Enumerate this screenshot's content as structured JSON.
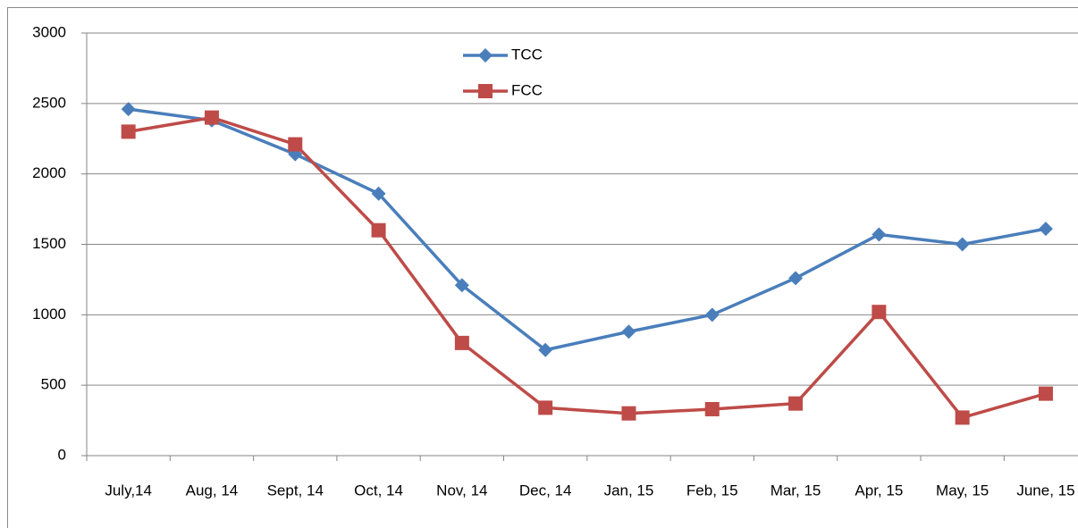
{
  "chart_data": {
    "type": "line",
    "categories": [
      "July,14",
      "Aug, 14",
      "Sept, 14",
      "Oct, 14",
      "Nov, 14",
      "Dec, 14",
      "Jan, 15",
      "Feb, 15",
      "Mar, 15",
      "Apr, 15",
      "May, 15",
      "June, 15"
    ],
    "series": [
      {
        "name": "TCC",
        "color": "#4a7ebb",
        "marker": "diamond",
        "values": [
          2460,
          2380,
          2140,
          1860,
          1210,
          750,
          880,
          1000,
          1260,
          1570,
          1500,
          1610
        ]
      },
      {
        "name": "FCC",
        "color": "#be4b48",
        "marker": "square",
        "values": [
          2300,
          2400,
          2210,
          1600,
          800,
          340,
          300,
          330,
          370,
          1020,
          270,
          440
        ]
      }
    ],
    "ylim": [
      0,
      3000
    ],
    "yticks": [
      0,
      500,
      1000,
      1500,
      2000,
      2500,
      3000
    ],
    "grid": true,
    "legend": "top"
  }
}
